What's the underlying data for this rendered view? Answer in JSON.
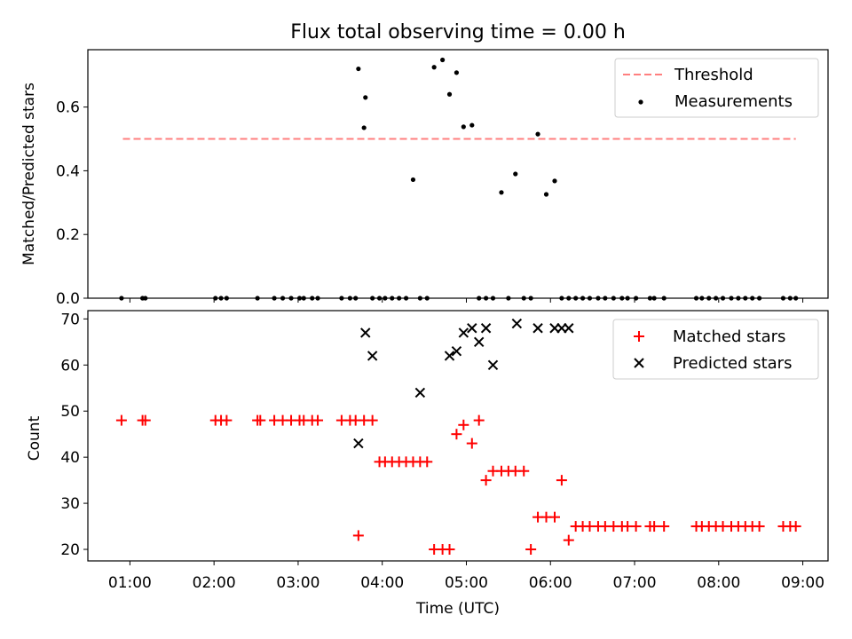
{
  "figure": {
    "title": "Flux total observing time = 0.00 h",
    "xlabel": "Time (UTC)"
  },
  "chart_data": [
    {
      "type": "scatter",
      "panel": "top",
      "ylabel": "Matched/Predicted stars",
      "xlim": [
        "00:30",
        "09:18"
      ],
      "ylim": [
        0,
        0.78
      ],
      "yticks": [
        0.0,
        0.2,
        0.4,
        0.6
      ],
      "ytick_labels": [
        "0.0",
        "0.2",
        "0.4",
        "0.6"
      ],
      "grid": false,
      "legend_position": "top-right",
      "threshold": {
        "name": "Threshold",
        "value": 0.5,
        "x": [
          "00:55",
          "08:55"
        ],
        "color": "#ff7f7f"
      },
      "series": [
        {
          "name": "Measurements",
          "color": "#000000",
          "x": [
            "00:54",
            "01:09",
            "01:11",
            "02:01",
            "02:05",
            "02:09",
            "02:31",
            "02:43",
            "02:49",
            "02:55",
            "03:01",
            "03:04",
            "03:10",
            "03:14",
            "03:31",
            "03:37",
            "03:41",
            "03:47",
            "03:43",
            "03:48",
            "03:53",
            "03:58",
            "04:02",
            "04:07",
            "04:12",
            "04:17",
            "04:22",
            "04:27",
            "04:32",
            "04:37",
            "04:43",
            "04:48",
            "04:53",
            "04:58",
            "05:04",
            "05:09",
            "05:14",
            "05:19",
            "05:25",
            "05:30",
            "05:35",
            "05:41",
            "05:46",
            "05:51",
            "05:57",
            "06:03",
            "06:08",
            "06:13",
            "06:18",
            "06:23",
            "06:28",
            "06:34",
            "06:39",
            "06:45",
            "06:51",
            "06:55",
            "07:01",
            "07:11",
            "07:14",
            "07:21",
            "07:44",
            "07:48",
            "07:53",
            "07:58",
            "08:03",
            "08:09",
            "08:14",
            "08:19",
            "08:24",
            "08:29",
            "08:46",
            "08:51",
            "08:55"
          ],
          "y": [
            0,
            0,
            0,
            0,
            0,
            0,
            0,
            0,
            0,
            0,
            0,
            0,
            0,
            0,
            0,
            0,
            0,
            0.535,
            0.72,
            0.63,
            0,
            0,
            0,
            0,
            0,
            0,
            0.372,
            0,
            0,
            0.725,
            0.748,
            0.64,
            0.708,
            0.538,
            0.543,
            0,
            0,
            0,
            0.332,
            0,
            0.39,
            0,
            0,
            0.515,
            0.326,
            0.368,
            0,
            0,
            0,
            0,
            0,
            0,
            0,
            0,
            0,
            0,
            0,
            0,
            0,
            0,
            0,
            0,
            0,
            0,
            0,
            0,
            0,
            0,
            0,
            0,
            0,
            0,
            0
          ]
        }
      ]
    },
    {
      "type": "scatter",
      "panel": "bottom",
      "ylabel": "Count",
      "xlim": [
        "00:30",
        "09:18"
      ],
      "ylim": [
        17.5,
        71.8
      ],
      "yticks": [
        20,
        30,
        40,
        50,
        60,
        70
      ],
      "ytick_labels": [
        "20",
        "30",
        "40",
        "50",
        "60",
        "70"
      ],
      "xticks": [
        "01:00",
        "02:00",
        "03:00",
        "04:00",
        "05:00",
        "06:00",
        "07:00",
        "08:00",
        "09:00"
      ],
      "grid": false,
      "legend_position": "top-right",
      "series": [
        {
          "name": "Matched stars",
          "marker": "plus",
          "color": "#ff0000",
          "x": [
            "00:54",
            "01:09",
            "01:11",
            "02:01",
            "02:05",
            "02:09",
            "02:31",
            "02:33",
            "02:43",
            "02:49",
            "02:55",
            "03:01",
            "03:04",
            "03:10",
            "03:14",
            "03:31",
            "03:37",
            "03:41",
            "03:47",
            "03:53",
            "03:43",
            "03:58",
            "04:02",
            "04:07",
            "04:12",
            "04:17",
            "04:22",
            "04:27",
            "04:32",
            "04:37",
            "04:43",
            "04:48",
            "04:53",
            "04:58",
            "05:04",
            "05:09",
            "05:14",
            "05:19",
            "05:25",
            "05:30",
            "05:35",
            "05:41",
            "05:46",
            "05:51",
            "05:57",
            "06:03",
            "06:08",
            "06:13",
            "06:18",
            "06:23",
            "06:28",
            "06:34",
            "06:39",
            "06:45",
            "06:51",
            "06:55",
            "07:01",
            "07:11",
            "07:14",
            "07:21",
            "07:44",
            "07:48",
            "07:53",
            "07:58",
            "08:03",
            "08:09",
            "08:14",
            "08:19",
            "08:24",
            "08:29",
            "08:46",
            "08:51",
            "08:55"
          ],
          "y": [
            48,
            48,
            48,
            48,
            48,
            48,
            48,
            48,
            48,
            48,
            48,
            48,
            48,
            48,
            48,
            48,
            48,
            48,
            48,
            48,
            23,
            39,
            39,
            39,
            39,
            39,
            39,
            39,
            39,
            20,
            20,
            20,
            45,
            47,
            43,
            48,
            35,
            37,
            37,
            37,
            37,
            37,
            20,
            27,
            27,
            27,
            35,
            22,
            25,
            25,
            25,
            25,
            25,
            25,
            25,
            25,
            25,
            25,
            25,
            25,
            25,
            25,
            25,
            25,
            25,
            25,
            25,
            25,
            25,
            25,
            25,
            25,
            25
          ]
        },
        {
          "name": "Predicted stars",
          "marker": "x",
          "color": "#000000",
          "x": [
            "03:43",
            "03:48",
            "03:53",
            "04:27",
            "04:48",
            "04:53",
            "04:58",
            "05:04",
            "05:09",
            "05:14",
            "05:19",
            "05:36",
            "05:51",
            "06:03",
            "06:08",
            "06:13"
          ],
          "y": [
            43,
            67,
            62,
            54,
            62,
            63,
            67,
            68,
            65,
            68,
            60,
            69,
            68,
            68,
            68,
            68
          ]
        }
      ]
    }
  ]
}
